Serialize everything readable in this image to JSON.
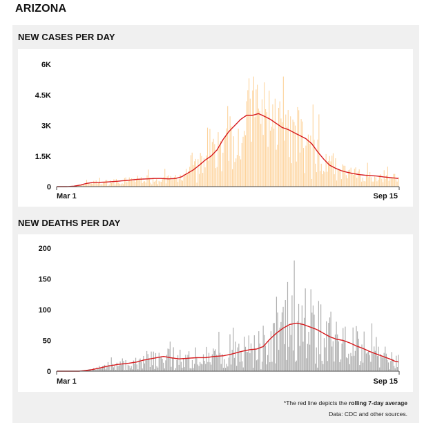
{
  "state": "ARIZONA",
  "colors": {
    "case_bar": "#fdd49e",
    "death_bar": "#b0b0b0",
    "avg_line": "#d7191c",
    "panel_bg": "#f0f0f0"
  },
  "footnote": {
    "prefix": "*The red line depicts the ",
    "bold": "rolling 7-day average",
    "source": "Data: CDC and other sources."
  },
  "chart_data": [
    {
      "type": "bar",
      "title": "NEW CASES PER DAY",
      "x_start_label": "Mar 1",
      "x_end_label": "Sep 15",
      "ylim": [
        0,
        6000
      ],
      "yticks": [
        0,
        1500,
        3000,
        4500,
        6000
      ],
      "ytick_labels": [
        "0",
        "1.5K",
        "3K",
        "4.5K",
        "6K"
      ],
      "avg_anchors": [
        [
          0,
          0
        ],
        [
          8,
          0
        ],
        [
          14,
          20
        ],
        [
          20,
          80
        ],
        [
          25,
          160
        ],
        [
          30,
          200
        ],
        [
          40,
          220
        ],
        [
          50,
          260
        ],
        [
          60,
          310
        ],
        [
          68,
          360
        ],
        [
          76,
          380
        ],
        [
          82,
          400
        ],
        [
          88,
          400
        ],
        [
          94,
          380
        ],
        [
          100,
          400
        ],
        [
          105,
          480
        ],
        [
          110,
          650
        ],
        [
          115,
          820
        ],
        [
          120,
          1050
        ],
        [
          125,
          1300
        ],
        [
          130,
          1500
        ],
        [
          135,
          1800
        ],
        [
          140,
          2300
        ],
        [
          145,
          2700
        ],
        [
          150,
          3000
        ],
        [
          155,
          3300
        ],
        [
          160,
          3500
        ],
        [
          165,
          3500
        ],
        [
          170,
          3580
        ],
        [
          175,
          3450
        ],
        [
          180,
          3300
        ],
        [
          185,
          3100
        ],
        [
          190,
          2900
        ],
        [
          195,
          2800
        ],
        [
          200,
          2650
        ],
        [
          205,
          2500
        ],
        [
          210,
          2350
        ],
        [
          215,
          2100
        ],
        [
          220,
          1700
        ],
        [
          225,
          1350
        ],
        [
          230,
          1050
        ],
        [
          235,
          900
        ],
        [
          240,
          780
        ],
        [
          245,
          700
        ],
        [
          250,
          640
        ],
        [
          255,
          590
        ],
        [
          260,
          560
        ],
        [
          265,
          540
        ],
        [
          270,
          520
        ],
        [
          275,
          480
        ],
        [
          280,
          450
        ],
        [
          285,
          420
        ],
        [
          288,
          400
        ]
      ]
    },
    {
      "type": "bar",
      "title": "NEW DEATHS PER DAY",
      "x_start_label": "Mar 1",
      "x_end_label": "Sep 15",
      "ylim": [
        0,
        200
      ],
      "yticks": [
        0,
        50,
        100,
        150,
        200
      ],
      "ytick_labels": [
        "0",
        "50",
        "100",
        "150",
        "200"
      ],
      "avg_anchors": [
        [
          0,
          0
        ],
        [
          20,
          0
        ],
        [
          30,
          2
        ],
        [
          38,
          5
        ],
        [
          45,
          8
        ],
        [
          55,
          11
        ],
        [
          65,
          13
        ],
        [
          72,
          15
        ],
        [
          78,
          18
        ],
        [
          84,
          20
        ],
        [
          90,
          22
        ],
        [
          96,
          24
        ],
        [
          102,
          22
        ],
        [
          110,
          20
        ],
        [
          118,
          21
        ],
        [
          126,
          22
        ],
        [
          134,
          22
        ],
        [
          142,
          24
        ],
        [
          150,
          25
        ],
        [
          158,
          28
        ],
        [
          166,
          32
        ],
        [
          174,
          35
        ],
        [
          180,
          36
        ],
        [
          186,
          40
        ],
        [
          192,
          52
        ],
        [
          198,
          62
        ],
        [
          204,
          70
        ],
        [
          210,
          76
        ],
        [
          216,
          78
        ],
        [
          222,
          76
        ],
        [
          228,
          72
        ],
        [
          234,
          68
        ],
        [
          240,
          62
        ],
        [
          246,
          56
        ],
        [
          252,
          52
        ],
        [
          258,
          50
        ],
        [
          264,
          46
        ],
        [
          270,
          41
        ],
        [
          276,
          37
        ],
        [
          282,
          32
        ],
        [
          288,
          28
        ],
        [
          294,
          24
        ],
        [
          300,
          20
        ],
        [
          305,
          16
        ],
        [
          308,
          15
        ]
      ]
    }
  ]
}
